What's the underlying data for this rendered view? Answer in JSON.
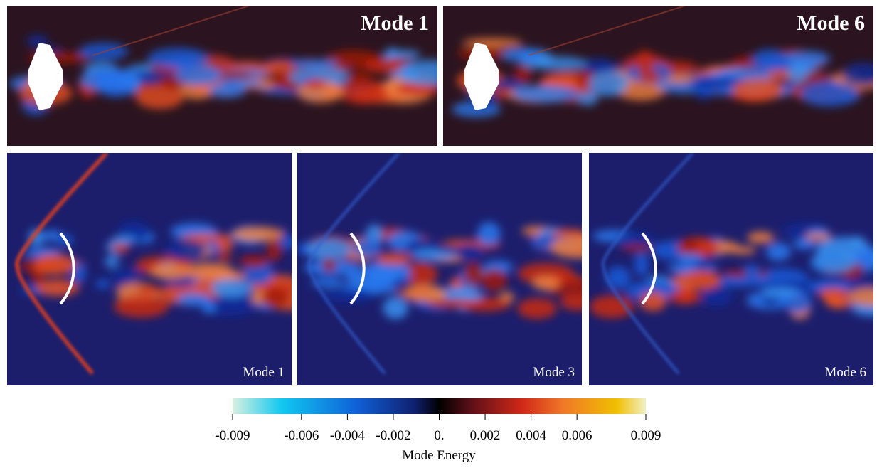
{
  "top_panels": [
    {
      "label": "Mode 1"
    },
    {
      "label": "Mode 6"
    }
  ],
  "bottom_panels": [
    {
      "label": "Mode 1"
    },
    {
      "label": "Mode 3"
    },
    {
      "label": "Mode 6"
    }
  ],
  "colorbar": {
    "label": "Mode Energy",
    "lim": [
      -0.009,
      0.009
    ],
    "ticks": [
      -0.009,
      -0.006,
      -0.004,
      -0.002,
      {
        "value": 0,
        "label": "0."
      },
      0.002,
      0.004,
      0.006,
      0.009
    ]
  }
}
